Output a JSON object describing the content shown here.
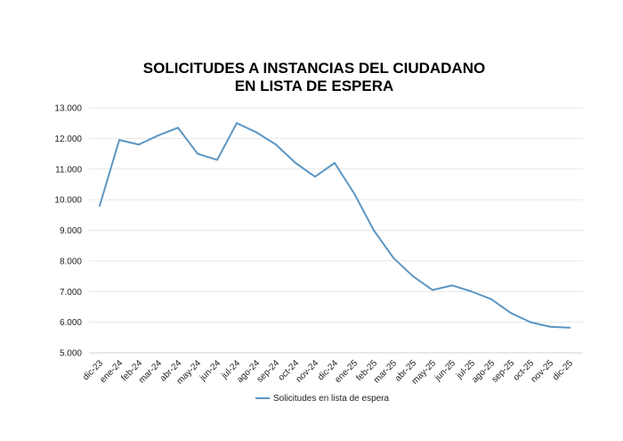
{
  "chart_data": {
    "type": "line",
    "title_lines": [
      "SOLICITUDES A INSTANCIAS DEL CIUDADANO",
      "EN LISTA DE ESPERA"
    ],
    "categories": [
      "dic-23",
      "ene-24",
      "feb-24",
      "mar-24",
      "abr-24",
      "may-24",
      "jun-24",
      "jul-24",
      "ago-24",
      "sep-24",
      "oct-24",
      "nov-24",
      "dic-24",
      "ene-25",
      "feb-25",
      "mar-25",
      "abr-25",
      "may-25",
      "jun-25",
      "jul-25",
      "ago-25",
      "sep-25",
      "oct-25",
      "nov-25",
      "dic-25"
    ],
    "series": [
      {
        "name": "Solicitudes en lista de espera",
        "color": "#5b96c3",
        "values": [
          9800,
          11950,
          11800,
          12100,
          12350,
          11500,
          11300,
          12500,
          12200,
          11800,
          11200,
          10750,
          11200,
          10200,
          9000,
          8100,
          7500,
          7050,
          7200,
          7000,
          6750,
          6300,
          6000,
          5850,
          5820
        ]
      }
    ],
    "ylim": [
      5000,
      13000
    ],
    "y_ticks": [
      5000,
      6000,
      7000,
      8000,
      9000,
      10000,
      11000,
      12000,
      13000
    ],
    "y_tick_labels": [
      "5.000",
      "6.000",
      "7.000",
      "8.000",
      "9.000",
      "10.000",
      "11.000",
      "12.000",
      "13.000"
    ],
    "grid": true,
    "legend_position": "bottom-center"
  }
}
